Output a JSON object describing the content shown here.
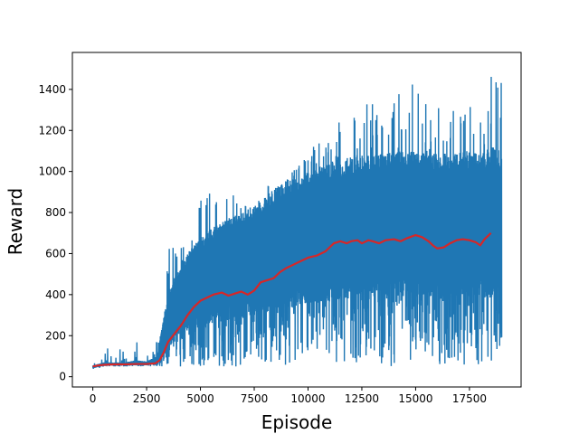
{
  "chart_data": {
    "type": "line",
    "title": "",
    "xlabel": "Episode",
    "ylabel": "Reward",
    "xlim": [
      -950,
      19900
    ],
    "ylim": [
      -50,
      1580
    ],
    "xticks": [
      0,
      2500,
      5000,
      7500,
      10000,
      12500,
      15000,
      17500
    ],
    "yticks": [
      0,
      200,
      400,
      600,
      800,
      1000,
      1200,
      1400
    ],
    "grid": false,
    "legend": "none",
    "series": [
      {
        "role": "raw episode reward",
        "color": "#1f77b4",
        "x_start": 0,
        "x_end": 19000,
        "envelope": {
          "x": [
            0,
            500,
            1000,
            1500,
            2000,
            2500,
            3000,
            3300,
            3600,
            4000,
            4500,
            5000,
            5500,
            6000,
            6500,
            7000,
            7500,
            8000,
            8500,
            9000,
            9500,
            10000,
            10500,
            11000,
            11500,
            12000,
            12500,
            13000,
            13500,
            14000,
            14500,
            15000,
            15500,
            16000,
            16500,
            17000,
            17500,
            18000,
            18500,
            19000
          ],
          "upper": [
            60,
            150,
            140,
            130,
            200,
            120,
            180,
            400,
            700,
            640,
            900,
            860,
            1030,
            880,
            920,
            870,
            800,
            950,
            900,
            960,
            1040,
            1080,
            1180,
            1150,
            1320,
            1250,
            1330,
            1360,
            1380,
            1430,
            1440,
            1430,
            1420,
            1420,
            1450,
            1350,
            1460,
            1460,
            1515,
            1450
          ],
          "lower": [
            20,
            50,
            50,
            50,
            50,
            50,
            50,
            50,
            50,
            50,
            50,
            50,
            50,
            50,
            50,
            50,
            50,
            50,
            50,
            50,
            50,
            50,
            50,
            50,
            50,
            50,
            50,
            50,
            50,
            50,
            50,
            50,
            50,
            50,
            50,
            50,
            50,
            50,
            50,
            130
          ],
          "band_high": [
            55,
            70,
            70,
            70,
            80,
            75,
            100,
            300,
            430,
            520,
            620,
            680,
            720,
            760,
            780,
            800,
            830,
            880,
            920,
            960,
            980,
            1000,
            1030,
            1050,
            1060,
            1070,
            1080,
            1080,
            1090,
            1100,
            1100,
            1100,
            1100,
            1090,
            1090,
            1090,
            1100,
            1100,
            1120,
            1100
          ],
          "band_low": [
            40,
            55,
            55,
            55,
            55,
            55,
            60,
            100,
            150,
            200,
            230,
            240,
            260,
            270,
            280,
            290,
            300,
            310,
            320,
            330,
            340,
            350,
            360,
            370,
            380,
            380,
            390,
            390,
            390,
            390,
            390,
            390,
            390,
            390,
            390,
            390,
            390,
            390,
            380,
            380
          ]
        }
      },
      {
        "role": "moving average reward",
        "color": "#d62728",
        "x": [
          0,
          250,
          500,
          1000,
          1500,
          2000,
          2500,
          2900,
          3100,
          3300,
          3500,
          3800,
          4100,
          4400,
          4700,
          5000,
          5300,
          5600,
          6000,
          6300,
          6600,
          6900,
          7200,
          7500,
          7800,
          8100,
          8400,
          8700,
          9000,
          9300,
          9600,
          10000,
          10400,
          10800,
          11000,
          11200,
          11500,
          11800,
          12000,
          12300,
          12500,
          12800,
          13000,
          13300,
          13600,
          14000,
          14300,
          14600,
          15000,
          15300,
          15600,
          15800,
          16000,
          16300,
          16600,
          16900,
          17200,
          17500,
          17800,
          18000,
          18200,
          18500
        ],
        "y": [
          50,
          55,
          58,
          60,
          60,
          62,
          62,
          65,
          80,
          120,
          170,
          210,
          250,
          300,
          340,
          370,
          385,
          400,
          410,
          395,
          405,
          415,
          400,
          420,
          460,
          470,
          480,
          510,
          530,
          545,
          560,
          580,
          590,
          610,
          630,
          650,
          660,
          650,
          660,
          665,
          650,
          665,
          660,
          650,
          665,
          670,
          660,
          675,
          690,
          680,
          660,
          640,
          625,
          630,
          650,
          665,
          670,
          665,
          655,
          640,
          670,
          700
        ]
      }
    ]
  }
}
